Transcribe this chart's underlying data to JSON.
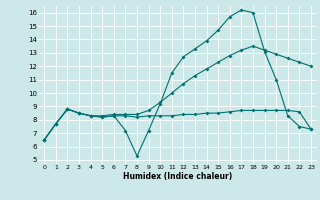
{
  "xlabel": "Humidex (Indice chaleur)",
  "bg_color": "#cce8e8",
  "grid_color": "#ffffff",
  "line_color": "#007070",
  "xlim": [
    -0.5,
    23.5
  ],
  "ylim": [
    4.7,
    16.5
  ],
  "xticks": [
    0,
    1,
    2,
    3,
    4,
    5,
    6,
    7,
    8,
    9,
    10,
    11,
    12,
    13,
    14,
    15,
    16,
    17,
    18,
    19,
    20,
    21,
    22,
    23
  ],
  "yticks": [
    5,
    6,
    7,
    8,
    9,
    10,
    11,
    12,
    13,
    14,
    15,
    16
  ],
  "line1_y": [
    6.5,
    7.7,
    8.8,
    8.5,
    8.3,
    8.2,
    8.3,
    7.2,
    5.3,
    7.2,
    9.2,
    11.5,
    12.7,
    13.3,
    13.9,
    14.7,
    15.7,
    16.2,
    16.0,
    13.1,
    11.0,
    8.3,
    7.5,
    7.3
  ],
  "line2_y": [
    6.5,
    7.7,
    8.8,
    8.5,
    8.3,
    8.3,
    8.4,
    8.4,
    8.4,
    8.7,
    9.3,
    10.0,
    10.7,
    11.3,
    11.8,
    12.3,
    12.8,
    13.2,
    13.5,
    13.2,
    12.9,
    12.6,
    12.3,
    12.0
  ],
  "line3_y": [
    6.5,
    7.7,
    8.8,
    8.5,
    8.3,
    8.2,
    8.3,
    8.3,
    8.2,
    8.3,
    8.3,
    8.3,
    8.4,
    8.4,
    8.5,
    8.5,
    8.6,
    8.7,
    8.7,
    8.7,
    8.7,
    8.7,
    8.6,
    7.3
  ],
  "xlabel_fontsize": 5.5,
  "tick_fontsize_x": 4.5,
  "tick_fontsize_y": 5.0
}
